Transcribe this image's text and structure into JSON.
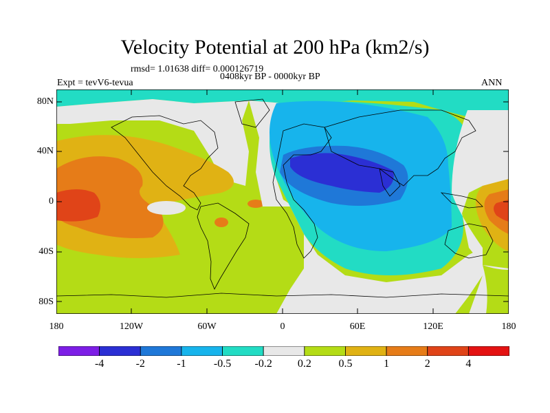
{
  "title": "Velocity Potential at 200 hPa (km2/s)",
  "stats": "rmsd= 1.01638 diff= 0.000126719",
  "period": "0408kyr BP - 0000kyr BP",
  "experiment": "Expt = tevV6-tevua",
  "season": "ANN",
  "y_ticks": [
    "80N",
    "40N",
    "0",
    "40S",
    "80S"
  ],
  "x_ticks": [
    "180",
    "120W",
    "60W",
    "0",
    "60E",
    "120E",
    "180"
  ],
  "colorbar": {
    "labels": [
      "-4",
      "-2",
      "-1",
      "-0.5",
      "-0.2",
      "0.2",
      "0.5",
      "1",
      "2",
      "4"
    ],
    "colors": [
      "#7d1ee6",
      "#2b2fd4",
      "#1f78d8",
      "#17b4ec",
      "#22dcc4",
      "#e8e8e8",
      "#b4dc16",
      "#e0b214",
      "#e67c18",
      "#e04418",
      "#e41212"
    ]
  }
}
